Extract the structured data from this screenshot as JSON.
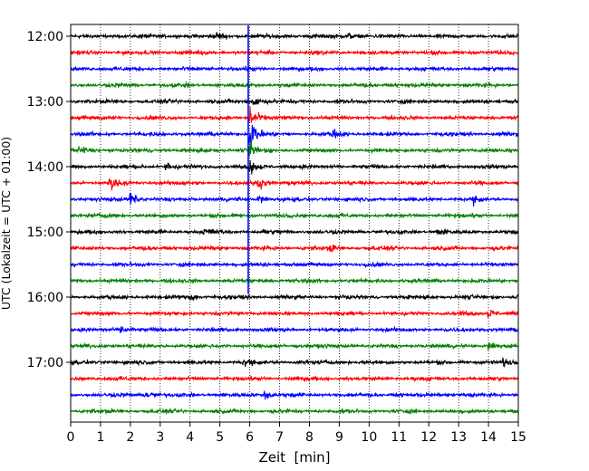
{
  "chart_data": {
    "type": "line",
    "title": "",
    "xlabel": "Zeit  [min]",
    "ylabel": "UTC (Lokalzeit = UTC + 01:00)",
    "xlim": [
      0,
      15
    ],
    "x_ticks": [
      0,
      1,
      2,
      3,
      4,
      5,
      6,
      7,
      8,
      9,
      10,
      11,
      12,
      13,
      14,
      15
    ],
    "y_ticks": [
      "12:00",
      "13:00",
      "14:00",
      "15:00",
      "16:00",
      "17:00"
    ],
    "trace_start": "12:00",
    "trace_interval_min": 15,
    "trace_count": 24,
    "color_cycle": [
      "#000000",
      "#ff0000",
      "#0000ff",
      "#008000"
    ],
    "grid": "vertical dotted",
    "legend": "none",
    "events": [
      {
        "trace_time": "12:00",
        "x_min": 4.9,
        "amp": 0.35
      },
      {
        "trace_time": "12:00",
        "x_min": 9.3,
        "amp": 0.25
      },
      {
        "trace_time": "13:00",
        "x_min": 6.1,
        "amp": 0.7
      },
      {
        "trace_time": "13:15",
        "x_min": 6.0,
        "amp": 1.3
      },
      {
        "trace_time": "13:30",
        "x_min": 6.0,
        "amp": 1.8
      },
      {
        "trace_time": "13:30",
        "x_min": 8.8,
        "amp": 0.35
      },
      {
        "trace_time": "13:45",
        "x_min": 6.0,
        "amp": 0.9
      },
      {
        "trace_time": "13:45",
        "x_min": 0.3,
        "amp": 0.35
      },
      {
        "trace_time": "14:00",
        "x_min": 3.2,
        "amp": 0.45
      },
      {
        "trace_time": "14:00",
        "x_min": 6.0,
        "amp": 0.6
      },
      {
        "trace_time": "14:15",
        "x_min": 1.3,
        "amp": 0.6
      },
      {
        "trace_time": "14:15",
        "x_min": 6.3,
        "amp": 0.5
      },
      {
        "trace_time": "14:30",
        "x_min": 2.0,
        "amp": 0.7
      },
      {
        "trace_time": "14:30",
        "x_min": 6.3,
        "amp": 0.45
      },
      {
        "trace_time": "14:30",
        "x_min": 13.5,
        "amp": 0.3
      },
      {
        "trace_time": "15:00",
        "x_min": 4.5,
        "amp": 0.35
      },
      {
        "trace_time": "15:00",
        "x_min": 12.3,
        "amp": 0.3
      },
      {
        "trace_time": "15:15",
        "x_min": 8.7,
        "amp": 0.25
      },
      {
        "trace_time": "16:00",
        "x_min": 4.0,
        "amp": 0.35
      },
      {
        "trace_time": "16:00",
        "x_min": 15.0,
        "amp": 0.5
      },
      {
        "trace_time": "16:15",
        "x_min": 14.0,
        "amp": 0.45
      },
      {
        "trace_time": "16:30",
        "x_min": 1.7,
        "amp": 0.45
      },
      {
        "trace_time": "16:45",
        "x_min": 14.0,
        "amp": 0.35
      },
      {
        "trace_time": "17:00",
        "x_min": 5.8,
        "amp": 0.35
      },
      {
        "trace_time": "17:00",
        "x_min": 14.5,
        "amp": 0.3
      },
      {
        "trace_time": "17:30",
        "x_min": 2.5,
        "amp": 0.4
      },
      {
        "trace_time": "17:30",
        "x_min": 6.5,
        "amp": 0.45
      }
    ],
    "marker_line": {
      "x_min": 5.95,
      "from": "11:50",
      "to": "15:57",
      "color": "#0000ff"
    }
  }
}
